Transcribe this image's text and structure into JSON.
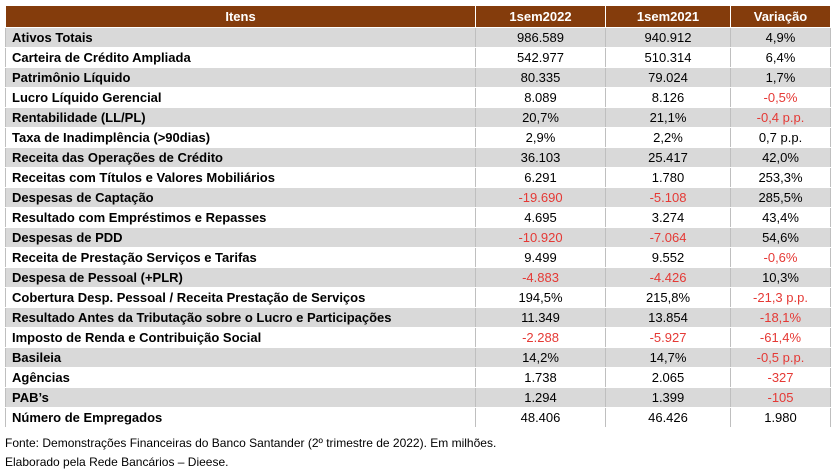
{
  "table": {
    "headers": [
      "Itens",
      "1sem2022",
      "1sem2021",
      "Variação"
    ],
    "rows": [
      {
        "item": "Ativos Totais",
        "v2022": "986.589",
        "v2021": "940.912",
        "var": "4,9%",
        "neg": [
          false,
          false,
          false
        ]
      },
      {
        "item": "Carteira de Crédito Ampliada",
        "v2022": "542.977",
        "v2021": "510.314",
        "var": "6,4%",
        "neg": [
          false,
          false,
          false
        ]
      },
      {
        "item": "Patrimônio Líquido",
        "v2022": "80.335",
        "v2021": "79.024",
        "var": "1,7%",
        "neg": [
          false,
          false,
          false
        ]
      },
      {
        "item": "Lucro Líquido Gerencial",
        "v2022": "8.089",
        "v2021": "8.126",
        "var": "-0,5%",
        "neg": [
          false,
          false,
          true
        ]
      },
      {
        "item": "Rentabilidade (LL/PL)",
        "v2022": "20,7%",
        "v2021": "21,1%",
        "var": "-0,4 p.p.",
        "neg": [
          false,
          false,
          true
        ]
      },
      {
        "item": "Taxa de Inadimplência (>90dias)",
        "v2022": "2,9%",
        "v2021": "2,2%",
        "var": "0,7 p.p.",
        "neg": [
          false,
          false,
          false
        ]
      },
      {
        "item": "Receita das Operações de Crédito",
        "v2022": "36.103",
        "v2021": "25.417",
        "var": "42,0%",
        "neg": [
          false,
          false,
          false
        ]
      },
      {
        "item": "Receitas com Títulos e Valores Mobiliários",
        "v2022": "6.291",
        "v2021": "1.780",
        "var": "253,3%",
        "neg": [
          false,
          false,
          false
        ]
      },
      {
        "item": "Despesas de Captação",
        "v2022": "-19.690",
        "v2021": "-5.108",
        "var": "285,5%",
        "neg": [
          true,
          true,
          false
        ]
      },
      {
        "item": "Resultado com Empréstimos e Repasses",
        "v2022": "4.695",
        "v2021": "3.274",
        "var": "43,4%",
        "neg": [
          false,
          false,
          false
        ]
      },
      {
        "item": "Despesas de PDD",
        "v2022": "-10.920",
        "v2021": "-7.064",
        "var": "54,6%",
        "neg": [
          true,
          true,
          false
        ]
      },
      {
        "item": "Receita de Prestação Serviços e Tarifas",
        "v2022": "9.499",
        "v2021": "9.552",
        "var": "-0,6%",
        "neg": [
          false,
          false,
          true
        ]
      },
      {
        "item": "Despesa de Pessoal (+PLR)",
        "v2022": "-4.883",
        "v2021": "-4.426",
        "var": "10,3%",
        "neg": [
          true,
          true,
          false
        ]
      },
      {
        "item": "Cobertura Desp. Pessoal / Receita Prestação de Serviços",
        "v2022": "194,5%",
        "v2021": "215,8%",
        "var": "-21,3 p.p.",
        "neg": [
          false,
          false,
          true
        ]
      },
      {
        "item": "Resultado Antes da Tributação sobre o Lucro e Participações",
        "v2022": "11.349",
        "v2021": "13.854",
        "var": "-18,1%",
        "neg": [
          false,
          false,
          true
        ]
      },
      {
        "item": "Imposto de Renda e Contribuição Social",
        "v2022": "-2.288",
        "v2021": "-5.927",
        "var": "-61,4%",
        "neg": [
          true,
          true,
          true
        ]
      },
      {
        "item": "Basileia",
        "v2022": "14,2%",
        "v2021": "14,7%",
        "var": "-0,5 p.p.",
        "neg": [
          false,
          false,
          true
        ]
      },
      {
        "item": "Agências",
        "v2022": "1.738",
        "v2021": "2.065",
        "var": "-327",
        "neg": [
          false,
          false,
          true
        ]
      },
      {
        "item": "PAB’s",
        "v2022": "1.294",
        "v2021": "1.399",
        "var": "-105",
        "neg": [
          false,
          false,
          true
        ]
      },
      {
        "item": "Número de Empregados",
        "v2022": "48.406",
        "v2021": "46.426",
        "var": "1.980",
        "neg": [
          false,
          false,
          false
        ]
      }
    ]
  },
  "notes": {
    "source": "Fonte: Demonstrações Financeiras do Banco Santander (2º trimestre de 2022). Em milhões.",
    "credit": "Elaborado pela Rede Bancários – Dieese."
  },
  "colors": {
    "header_bg": "#843c0c",
    "negative_text": "#e53935",
    "stripe": "#d9d9d9"
  }
}
